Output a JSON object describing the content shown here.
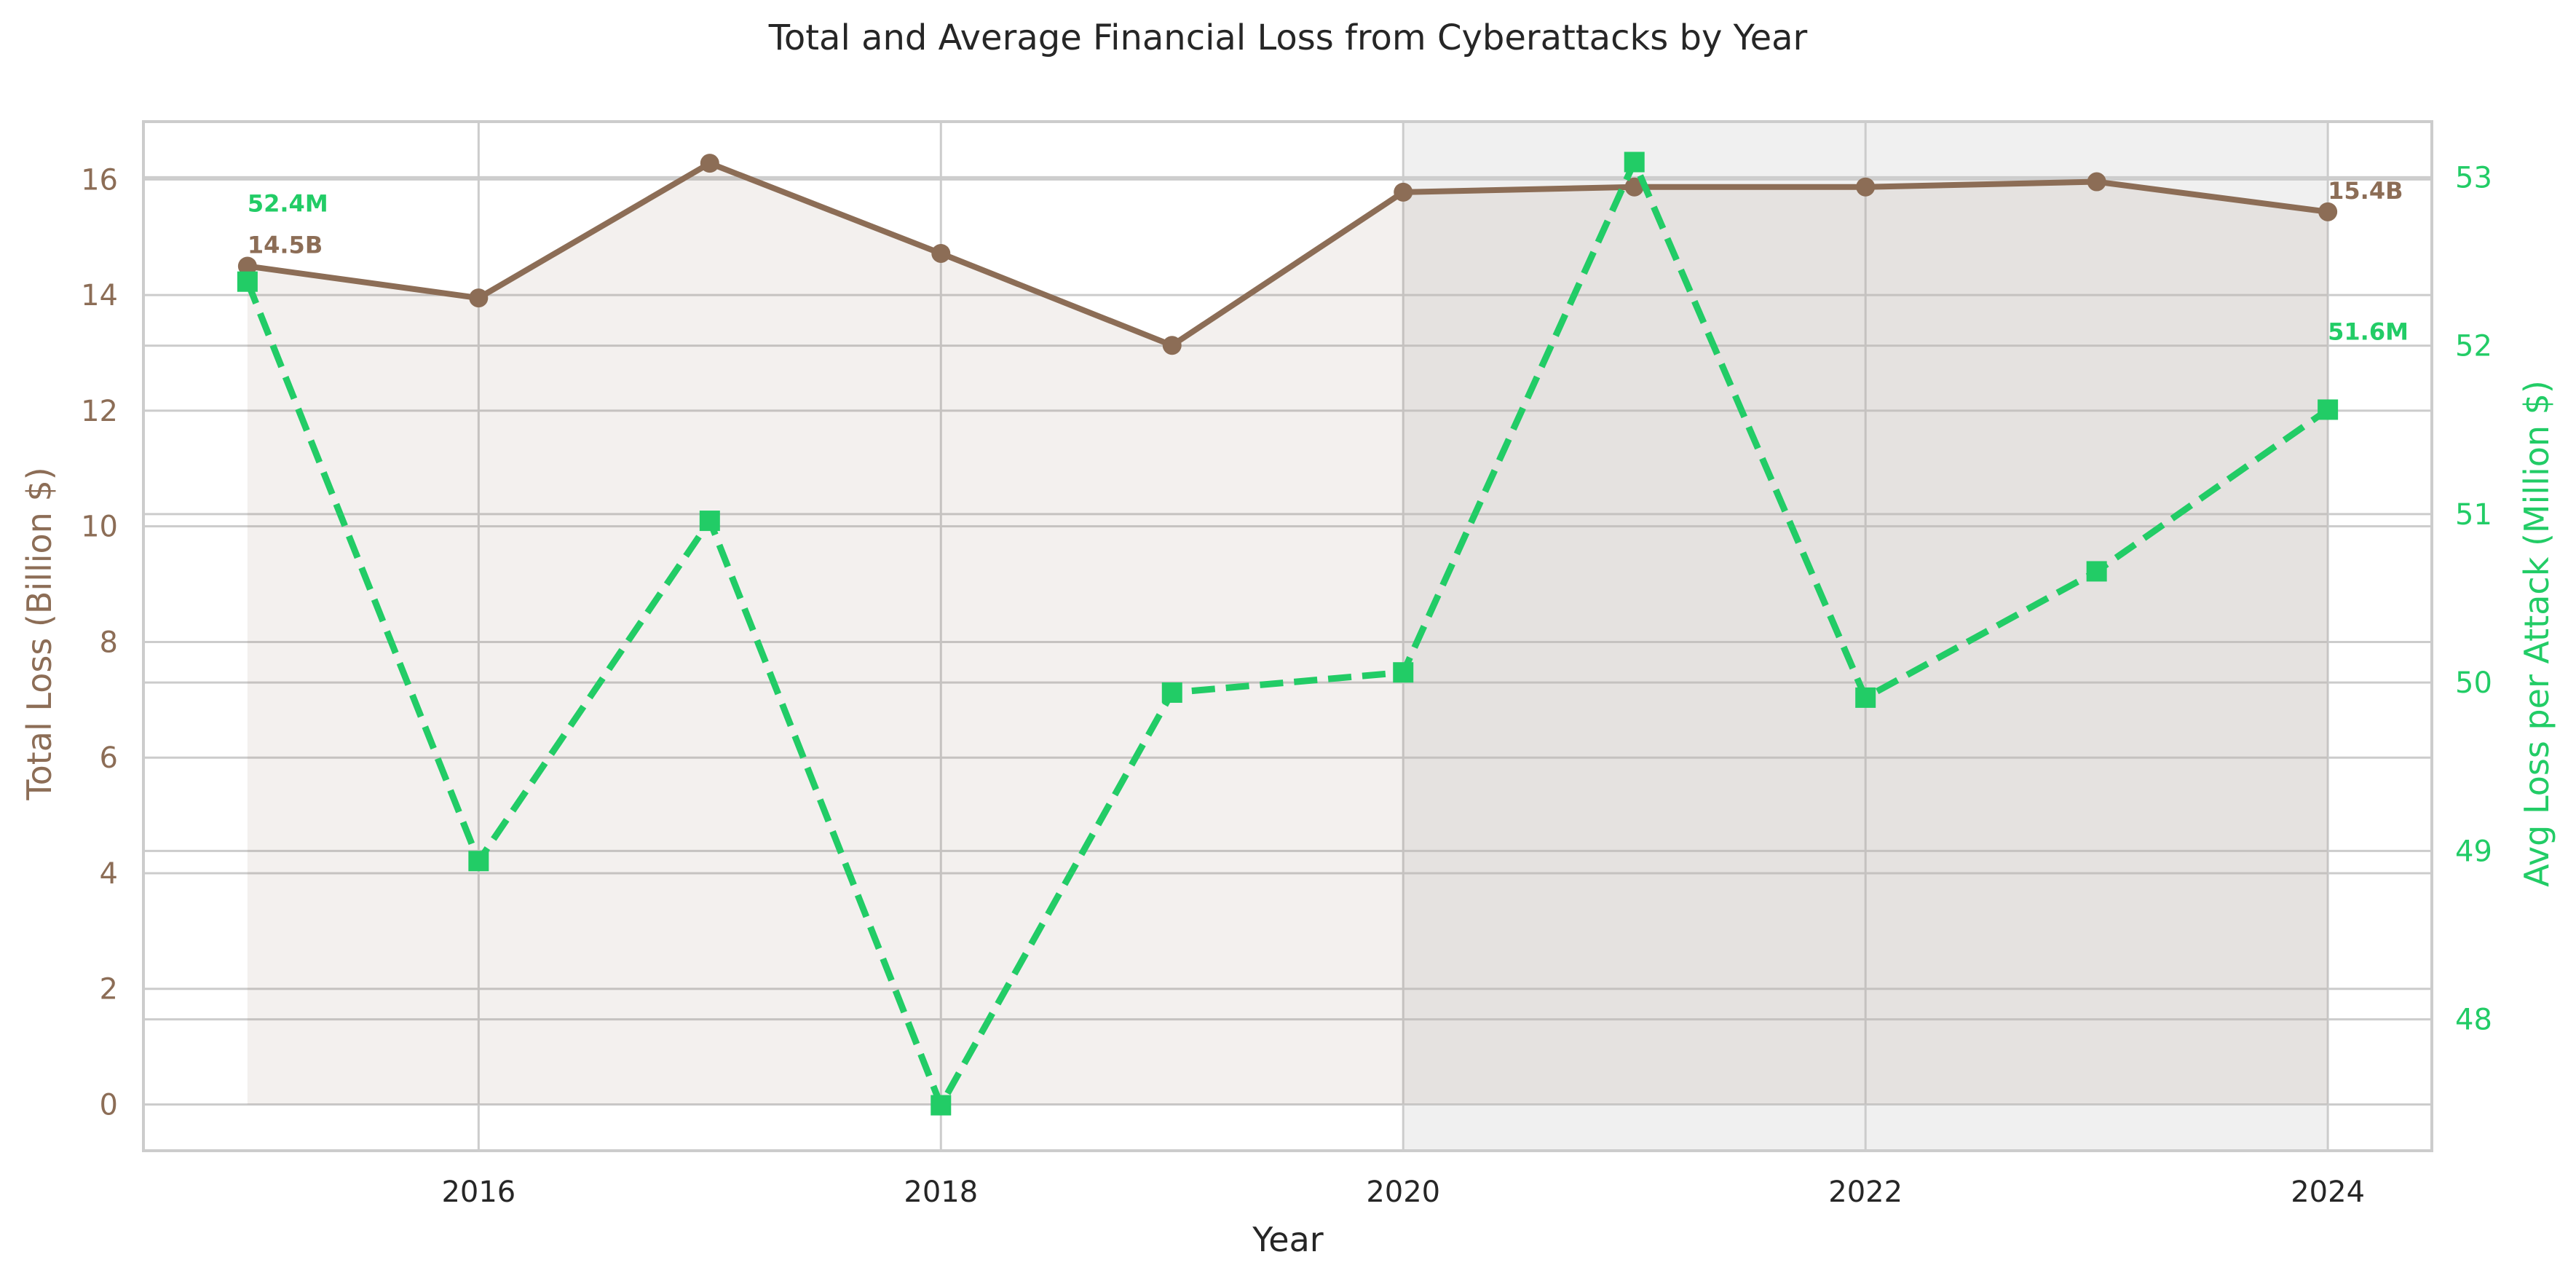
{
  "chart_data": {
    "type": "line",
    "title": "Total and Average Financial Loss from Cyberattacks by Year",
    "xlabel": "Year",
    "ylabel_left": "Total Loss (Billion $)",
    "ylabel_right": "Avg Loss per Attack (Million $)",
    "x": [
      2015,
      2016,
      2017,
      2018,
      2019,
      2020,
      2021,
      2022,
      2023,
      2024
    ],
    "xticks": [
      "2016",
      "2018",
      "2020",
      "2022",
      "2024"
    ],
    "xtick_values": [
      2016,
      2018,
      2020,
      2022,
      2024
    ],
    "xlim": [
      2014.55,
      2024.45
    ],
    "ylim_left": [
      -0.8,
      17.0
    ],
    "yticks_left": [
      "0",
      "2",
      "4",
      "6",
      "8",
      "10",
      "12",
      "14",
      "16"
    ],
    "ytick_values_left": [
      0,
      2,
      4,
      6,
      8,
      10,
      12,
      14,
      16
    ],
    "ylim_right": [
      47.22,
      53.33
    ],
    "yticks_right": [
      "48",
      "49",
      "50",
      "51",
      "52",
      "53"
    ],
    "ytick_values_right": [
      48,
      49,
      50,
      51,
      52,
      53
    ],
    "shaded_period": [
      2020,
      2024
    ],
    "grid": true,
    "series": [
      {
        "axis": "left",
        "style": "solid-circle",
        "color": "#8c6d56",
        "values": [
          14.5,
          13.95,
          16.28,
          14.72,
          13.13,
          15.78,
          15.87,
          15.87,
          15.96,
          15.44
        ]
      },
      {
        "axis": "right",
        "style": "dashed-square",
        "color": "#22cc66",
        "values": [
          52.38,
          48.94,
          50.96,
          47.49,
          49.94,
          50.06,
          53.09,
          49.91,
          50.66,
          51.62
        ]
      }
    ],
    "annotations": [
      {
        "text": "14.5B",
        "series": 0,
        "index": 0
      },
      {
        "text": "15.4B",
        "series": 0,
        "index": 9
      },
      {
        "text": "52.4M",
        "series": 1,
        "index": 0
      },
      {
        "text": "51.6M",
        "series": 1,
        "index": 9
      }
    ]
  }
}
